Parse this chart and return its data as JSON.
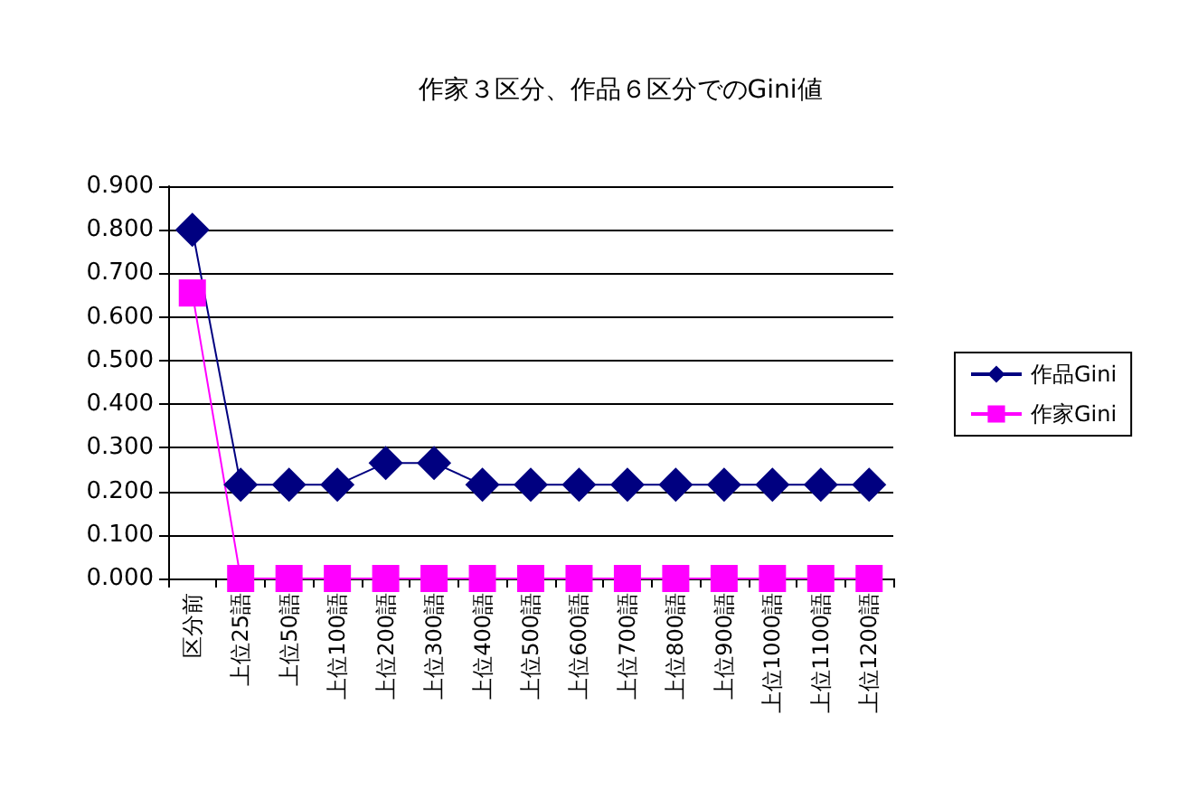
{
  "chart_data": {
    "type": "line",
    "title": "作家３区分、作品６区分でのGini値",
    "categories": [
      "区分前",
      "上位25語",
      "上位50語",
      "上位100語",
      "上位200語",
      "上位300語",
      "上位400語",
      "上位500語",
      "上位600語",
      "上位700語",
      "上位800語",
      "上位900語",
      "上位1000語",
      "上位1100語",
      "上位1200語"
    ],
    "series": [
      {
        "name": "作品Gini",
        "color": "#000080",
        "marker": "diamond",
        "values": [
          0.8,
          0.215,
          0.215,
          0.215,
          0.265,
          0.265,
          0.215,
          0.215,
          0.215,
          0.215,
          0.215,
          0.215,
          0.215,
          0.215,
          0.215
        ]
      },
      {
        "name": "作家Gini",
        "color": "#ff00ff",
        "marker": "square",
        "values": [
          0.655,
          0,
          0,
          0,
          0,
          0,
          0,
          0,
          0,
          0,
          0,
          0,
          0,
          0,
          0
        ]
      }
    ],
    "ylim": [
      0,
      0.9
    ],
    "yticks": [
      {
        "value": 0,
        "label": "0.000"
      },
      {
        "value": 0.1,
        "label": "0.100"
      },
      {
        "value": 0.2,
        "label": "0.200"
      },
      {
        "value": 0.3,
        "label": "0.300"
      },
      {
        "value": 0.4,
        "label": "0.400"
      },
      {
        "value": 0.5,
        "label": "0.500"
      },
      {
        "value": 0.6,
        "label": "0.600"
      },
      {
        "value": 0.7,
        "label": "0.700"
      },
      {
        "value": 0.8,
        "label": "0.800"
      },
      {
        "value": 0.9,
        "label": "0.900"
      }
    ],
    "grid": "y",
    "legend": "right",
    "line_style": "solid"
  }
}
